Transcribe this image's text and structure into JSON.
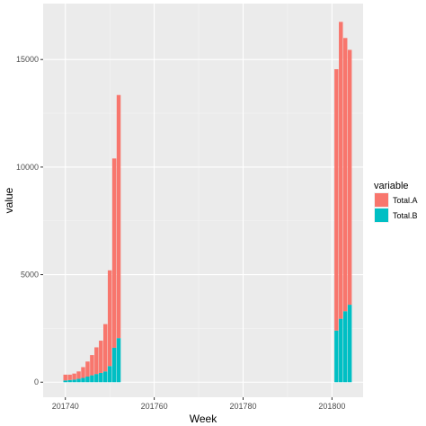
{
  "chart_data": {
    "type": "bar",
    "stacked": true,
    "title": "",
    "xlabel": "Week",
    "ylabel": "value",
    "grid": true,
    "legend_position": "right",
    "legend": {
      "title": "variable",
      "items": [
        {
          "label": "Total.A",
          "color": "#F8766D"
        },
        {
          "label": "Total.B",
          "color": "#00BFC4"
        }
      ]
    },
    "x_ticks": [
      201740,
      201760,
      201780,
      201800
    ],
    "x_tick_labels": [
      "201740",
      "201760",
      "201780",
      "201800"
    ],
    "y_ticks": [
      0,
      5000,
      10000,
      15000
    ],
    "y_tick_labels": [
      "0",
      "5000",
      "10000",
      "15000"
    ],
    "xlim": [
      201735,
      201807
    ],
    "ylim": [
      -700,
      17600
    ],
    "series": [
      {
        "name": "Total.B",
        "color": "#00BFC4",
        "x": [
          201740,
          201741,
          201742,
          201743,
          201744,
          201745,
          201746,
          201747,
          201748,
          201749,
          201750,
          201751,
          201752,
          201801,
          201802,
          201803,
          201804
        ],
        "values": [
          80,
          100,
          120,
          160,
          200,
          260,
          320,
          380,
          430,
          500,
          750,
          1600,
          2050,
          2400,
          2950,
          3300,
          3600
        ]
      },
      {
        "name": "Total.A",
        "color": "#F8766D",
        "x": [
          201740,
          201741,
          201742,
          201743,
          201744,
          201745,
          201746,
          201747,
          201748,
          201749,
          201750,
          201751,
          201752,
          201801,
          201802,
          201803,
          201804
        ],
        "values": [
          270,
          250,
          280,
          340,
          500,
          700,
          940,
          1240,
          1500,
          2200,
          4450,
          8800,
          11300,
          12150,
          13800,
          12700,
          11850
        ]
      }
    ]
  }
}
